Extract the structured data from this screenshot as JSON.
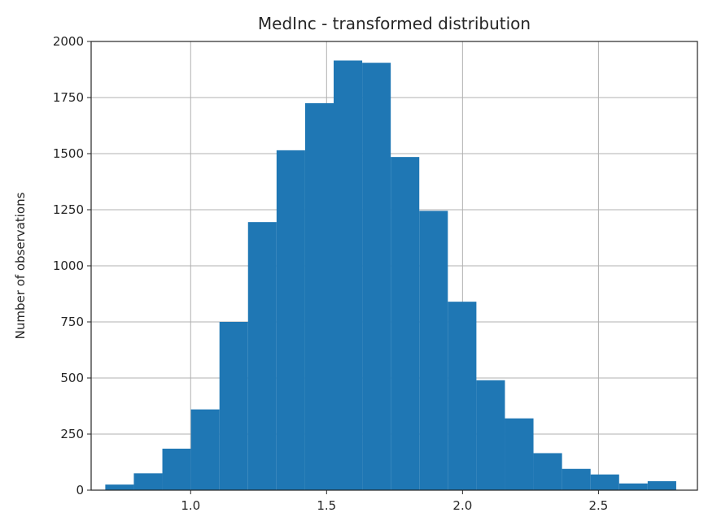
{
  "chart_data": {
    "type": "bar",
    "title": "MedInc - transformed distribution",
    "xlabel": "",
    "ylabel": "Number of observations",
    "xlim": [
      0.634,
      2.864
    ],
    "ylim": [
      0,
      2000
    ],
    "grid": true,
    "bar_color": "#1f77b4",
    "x_ticks": [
      1.0,
      1.5,
      2.0,
      2.5
    ],
    "x_tick_labels": [
      "1.0",
      "1.5",
      "2.0",
      "2.5"
    ],
    "y_ticks": [
      0,
      250,
      500,
      750,
      1000,
      1250,
      1500,
      1750,
      2000
    ],
    "y_tick_labels": [
      "0",
      "250",
      "500",
      "750",
      "1000",
      "1250",
      "1500",
      "1750",
      "2000"
    ],
    "bin_edges": [
      0.686,
      0.791,
      0.896,
      1.001,
      1.106,
      1.211,
      1.316,
      1.421,
      1.526,
      1.631,
      1.736,
      1.841,
      1.946,
      2.051,
      2.156,
      2.261,
      2.366,
      2.471,
      2.576,
      2.681,
      2.786
    ],
    "values": [
      25,
      75,
      185,
      360,
      750,
      1195,
      1515,
      1725,
      1915,
      1905,
      1485,
      1245,
      840,
      490,
      320,
      165,
      95,
      70,
      30,
      40
    ]
  }
}
